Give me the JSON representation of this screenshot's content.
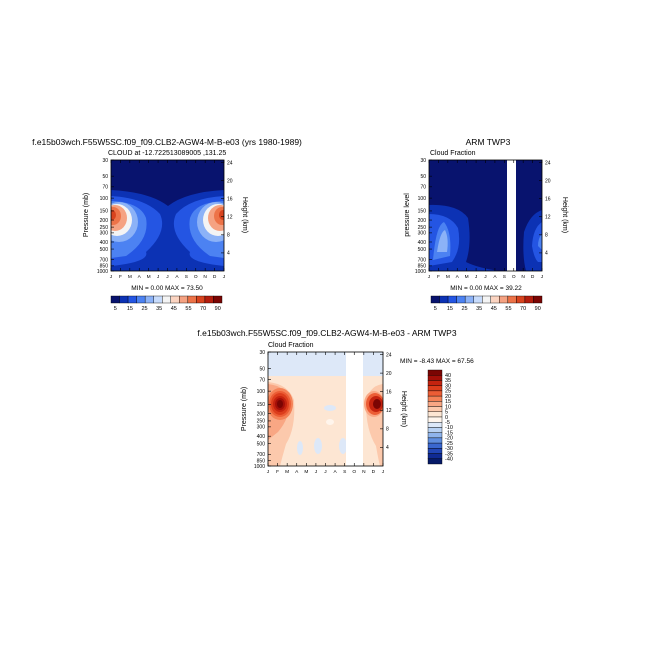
{
  "chart_data": [
    {
      "type": "heatmap",
      "title": "f.e15b03wch.F55W5SC.f09_f09.CLB2-AGW4-M-B-e03 (yrs 1980-1989)",
      "subtitle": "CLOUD at -12.722513089005 ,131.25",
      "ylabel": "Pressure (mb)",
      "ylabel_right": "Height (km)",
      "x_ticks": [
        "J",
        "F",
        "M",
        "A",
        "M",
        "J",
        "J",
        "A",
        "S",
        "O",
        "N",
        "D",
        "J"
      ],
      "y_ticks": [
        "30",
        "50",
        "70",
        "100",
        "150",
        "200",
        "250",
        "300",
        "400",
        "500",
        "700",
        "850",
        "1000"
      ],
      "y_ticks_right": [
        "24",
        "20",
        "16",
        "12",
        "8",
        "4"
      ],
      "stats": "MIN =   0.00 MAX =   73.50",
      "colorbar": {
        "labels": [
          "5",
          "15",
          "25",
          "35",
          "45",
          "55",
          "70",
          "90"
        ],
        "colors": [
          "#08136e",
          "#0c32b4",
          "#2455e3",
          "#4c82f2",
          "#8cb2f7",
          "#c7dbfb",
          "#f4f4f4",
          "#fbd4c1",
          "#f5a282",
          "#ed7348",
          "#d8431e",
          "#b31d0d",
          "#7a0503"
        ]
      }
    },
    {
      "type": "heatmap",
      "title": "ARM TWP3",
      "subtitle": "Cloud Fraction",
      "ylabel": "pressure level",
      "ylabel_right": "Height (km)",
      "x_ticks": [
        "J",
        "F",
        "M",
        "A",
        "M",
        "J",
        "J",
        "A",
        "S",
        "O",
        "N",
        "D",
        "J"
      ],
      "y_ticks": [
        "30",
        "50",
        "70",
        "100",
        "150",
        "200",
        "250",
        "300",
        "400",
        "500",
        "700",
        "850",
        "1000"
      ],
      "y_ticks_right": [
        "24",
        "20",
        "16",
        "12",
        "8",
        "4"
      ],
      "stats": "MIN =   0.00 MAX =   39.22",
      "colorbar": {
        "labels": [
          "5",
          "15",
          "25",
          "35",
          "45",
          "55",
          "70",
          "90"
        ],
        "colors": [
          "#08136e",
          "#0c32b4",
          "#2455e3",
          "#4c82f2",
          "#8cb2f7",
          "#c7dbfb",
          "#f4f4f4",
          "#fbd4c1",
          "#f5a282",
          "#ed7348",
          "#d8431e",
          "#b31d0d",
          "#7a0503"
        ]
      }
    },
    {
      "type": "heatmap",
      "title": "f.e15b03wch.F55W5SC.f09_f09.CLB2-AGW4-M-B-e03 - ARM TWP3",
      "subtitle": "Cloud Fraction",
      "ylabel": "Pressure (mb)",
      "ylabel_right": "Height (km)",
      "x_ticks": [
        "J",
        "F",
        "M",
        "A",
        "M",
        "J",
        "J",
        "A",
        "S",
        "O",
        "N",
        "D",
        "J"
      ],
      "y_ticks": [
        "30",
        "50",
        "70",
        "100",
        "150",
        "200",
        "250",
        "300",
        "400",
        "500",
        "700",
        "850",
        "1000"
      ],
      "y_ticks_right": [
        "24",
        "20",
        "16",
        "12",
        "8",
        "4"
      ],
      "stats": "MIN =  -8.43 MAX =   67.56",
      "colorbar": {
        "labels": [
          "40",
          "35",
          "30",
          "25",
          "20",
          "15",
          "10",
          "5",
          "0",
          "-5",
          "-10",
          "-15",
          "-20",
          "-25",
          "-30",
          "-35",
          "-40"
        ],
        "colors": [
          "#7a0503",
          "#a30f08",
          "#c4230f",
          "#dc3d1c",
          "#ec5d35",
          "#f48257",
          "#f9a784",
          "#fcc9ac",
          "#fde6d3",
          "#fff5ec",
          "#dde8f8",
          "#b8d1f3",
          "#8fb4ec",
          "#5f8ee0",
          "#3a67cf",
          "#2145b5",
          "#0f2a93",
          "#061a68"
        ]
      }
    }
  ]
}
